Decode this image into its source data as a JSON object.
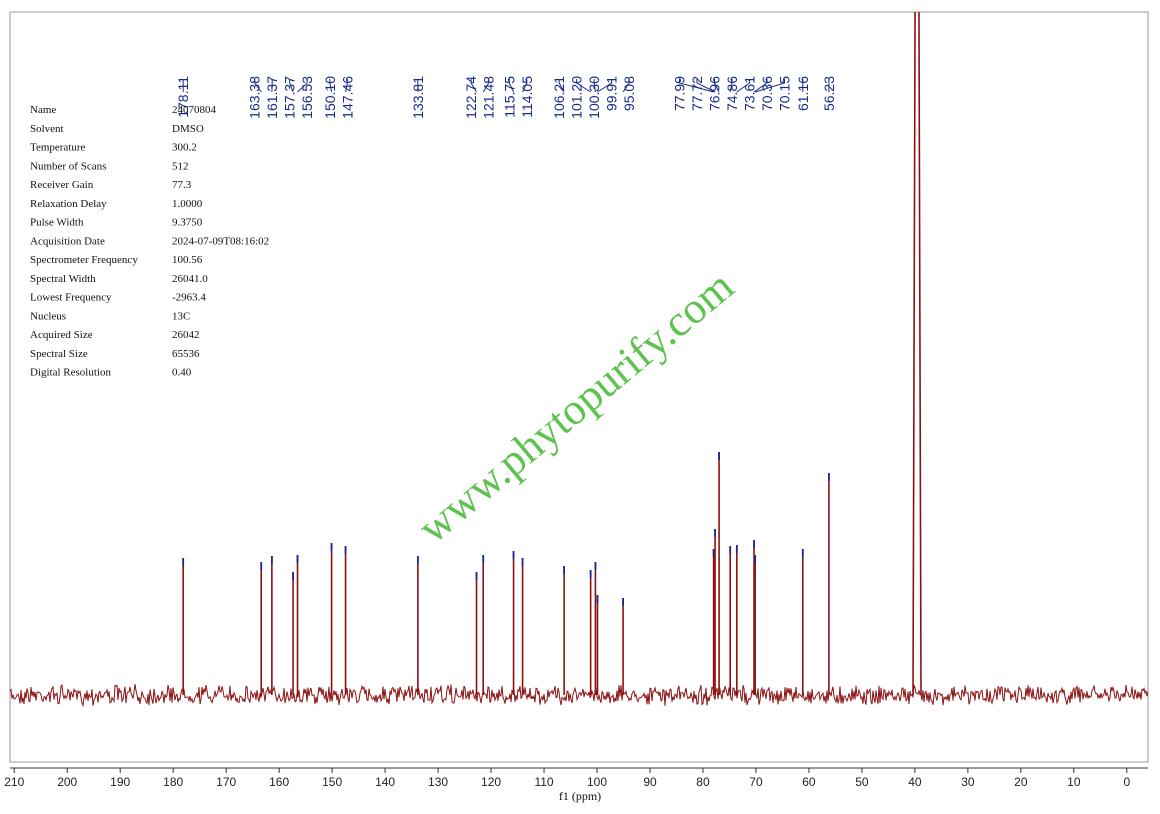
{
  "chart_data": {
    "type": "nmr",
    "xlabel": "f1 (ppm)",
    "xlim": [
      210.8,
      -4
    ],
    "xticks": [
      210,
      200,
      190,
      180,
      170,
      160,
      150,
      140,
      130,
      120,
      110,
      100,
      90,
      80,
      70,
      60,
      50,
      40,
      30,
      20,
      10,
      0
    ],
    "ylim": [
      -67,
      683
    ],
    "x": [
      178.11,
      163.38,
      161.37,
      157.37,
      156.53,
      150.1,
      147.46,
      133.81,
      122.74,
      121.48,
      115.75,
      114.05,
      106.21,
      101.2,
      100.3,
      99.91,
      95.08,
      77.99,
      77.72,
      76.96,
      74.86,
      73.61,
      70.36,
      70.15,
      61.16,
      56.23
    ],
    "x_labels": [
      "178.11",
      "163.38",
      "161.37",
      "157.37",
      "156.53",
      "150.10",
      "147.46",
      "133.81",
      "122.74",
      "121.48",
      "115.75",
      "114.05",
      "106.21",
      "101.20",
      "100.30",
      "99.91",
      "95.08",
      "77.99",
      "77.72",
      "76.96",
      "74.86",
      "73.61",
      "70.36",
      "70.15",
      "61.16",
      "56.23"
    ],
    "values": [
      137,
      133,
      139,
      123,
      140,
      152,
      149,
      139,
      123,
      140,
      144,
      137,
      129,
      125,
      133,
      100,
      97,
      146,
      166,
      243,
      149,
      150,
      155,
      140,
      146,
      222
    ],
    "solvent_peak": {
      "x": 39.6,
      "value": 1000
    },
    "line_color": "#8b1111",
    "cap_color": "#1a2a9a"
  },
  "parameters": [
    [
      "Name",
      "24070804"
    ],
    [
      "Solvent",
      "DMSO"
    ],
    [
      "Temperature",
      "300.2"
    ],
    [
      "Number of Scans",
      "512"
    ],
    [
      "Receiver Gain",
      "77.3"
    ],
    [
      "Relaxation Delay",
      "1.0000"
    ],
    [
      "Pulse Width",
      "9.3750"
    ],
    [
      "Acquisition Date",
      "2024-07-09T08:16:02"
    ],
    [
      "Spectrometer Frequency",
      "100.56"
    ],
    [
      "Spectral Width",
      "26041.0"
    ],
    [
      "Lowest Frequency",
      "-2963.4"
    ],
    [
      "Nucleus",
      "13C"
    ],
    [
      "Acquired Size",
      "26042"
    ],
    [
      "Spectral Size",
      "65536"
    ],
    [
      "Digital Resolution",
      "0.40"
    ]
  ],
  "watermark": "www.phytopurify.com"
}
